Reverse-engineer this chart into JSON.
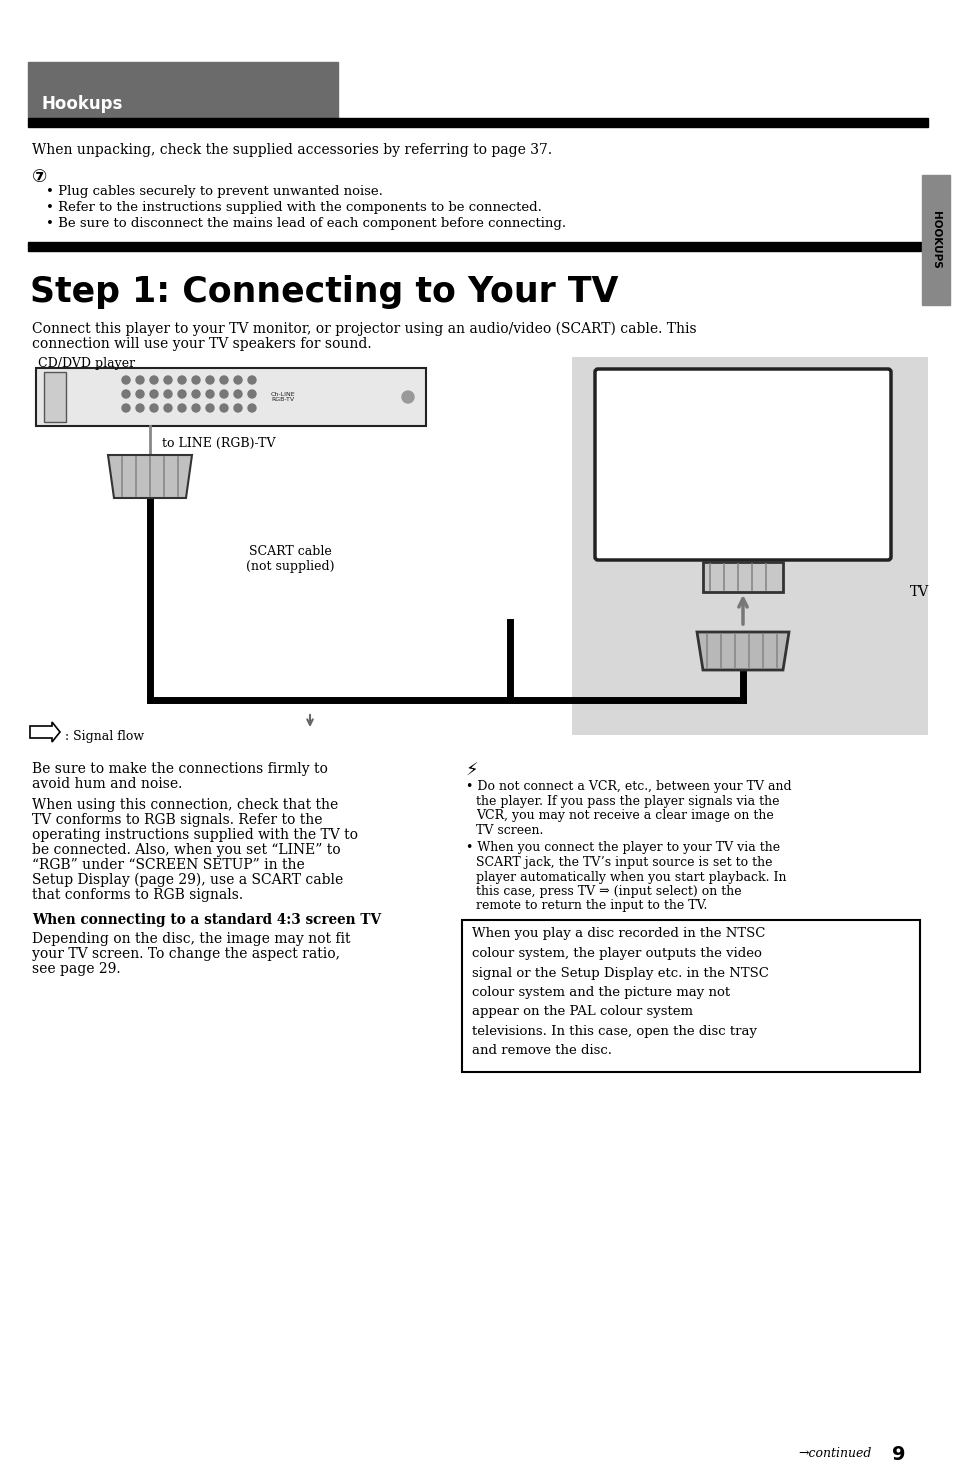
{
  "bg_color": "#ffffff",
  "header_gray": "#6b6b6b",
  "header_text": "Hookups",
  "side_tab_color": "#888888",
  "side_tab_text": "HOOKUPS",
  "page_number": "9",
  "intro_line": "When unpacking, check the supplied accessories by referring to page 37.",
  "w1_b1": "Plug cables securely to prevent unwanted noise.",
  "w1_b2": "Refer to the instructions supplied with the components to be connected.",
  "w1_b3": "Be sure to disconnect the mains lead of each component before connecting.",
  "step_title": "Step 1: Connecting to Your TV",
  "desc1": "Connect this player to your TV monitor, or projector using an audio/video (SCART) cable. This",
  "desc2": "connection will use your TV speakers for sound.",
  "label_cd_dvd": "CD/DVD player",
  "label_line_rgb": "to LINE (RGB)-TV",
  "label_scart1": "SCART cable",
  "label_scart2": "(not supplied)",
  "label_signal": ": Signal flow",
  "label_tv": "TV",
  "lt1a": "Be sure to make the connections firmly to",
  "lt1b": "avoid hum and noise.",
  "lt2a": "When using this connection, check that the",
  "lt2b": "TV conforms to RGB signals. Refer to the",
  "lt2c": "operating instructions supplied with the TV to",
  "lt2d": "be connected. Also, when you set “LINE” to",
  "lt2e": "“RGB” under “SCREEN SETUP” in the",
  "lt2f": "Setup Display (page 29), use a SCART cable",
  "lt2g": "that conforms to RGB signals.",
  "subhead": "When connecting to a standard 4:3 screen TV",
  "lt3a": "Depending on the disc, the image may not fit",
  "lt3b": "your TV screen. To change the aspect ratio,",
  "lt3c": "see page 29.",
  "rb1a": "Do not connect a VCR, etc., between your TV and",
  "rb1b": "the player. If you pass the player signals via the",
  "rb1c": "VCR, you may not receive a clear image on the",
  "rb1d": "TV screen.",
  "rb2a": "When you connect the player to your TV via the",
  "rb2b": "SCART jack, the TV’s input source is set to the",
  "rb2c": "player automatically when you start playback. In",
  "rb2d": "this case, press TV ⇒ (input select) on the",
  "rb2e": "remote to return the input to the TV.",
  "box1": "When you play a disc recorded in the NTSC",
  "box2": "colour system, the player outputs the video",
  "box3": "signal or the Setup Display etc. in the NTSC",
  "box4": "colour system and the picture may not",
  "box5": "appear on the PAL colour system",
  "box6": "televisions. In this case, open the disc tray",
  "box7": "and remove the disc."
}
